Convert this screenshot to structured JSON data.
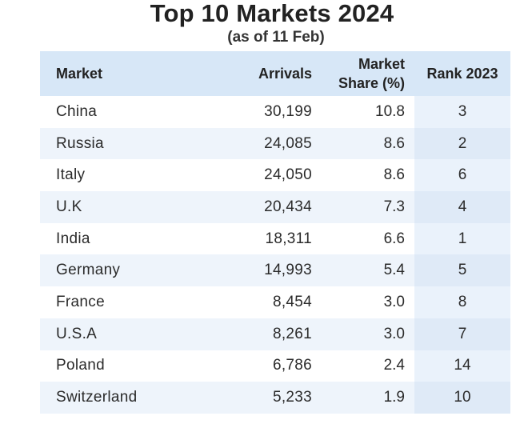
{
  "title": "Top 10 Markets 2024",
  "subtitle": "(as of 11 Feb)",
  "table": {
    "headers": {
      "market": "Market",
      "arrivals": "Arrivals",
      "share_line1": "Market",
      "share_line2": "Share (%)",
      "rank": "Rank 2023"
    },
    "rows": [
      {
        "market": "China",
        "arrivals": "30,199",
        "share": "10.8",
        "rank": "3"
      },
      {
        "market": "Russia",
        "arrivals": "24,085",
        "share": "8.6",
        "rank": "2"
      },
      {
        "market": "Italy",
        "arrivals": "24,050",
        "share": "8.6",
        "rank": "6"
      },
      {
        "market": "U.K",
        "arrivals": "20,434",
        "share": "7.3",
        "rank": "4"
      },
      {
        "market": "India",
        "arrivals": "18,311",
        "share": "6.6",
        "rank": "1"
      },
      {
        "market": "Germany",
        "arrivals": "14,993",
        "share": "5.4",
        "rank": "5"
      },
      {
        "market": "France",
        "arrivals": "8,454",
        "share": "3.0",
        "rank": "8"
      },
      {
        "market": "U.S.A",
        "arrivals": "8,261",
        "share": "3.0",
        "rank": "7"
      },
      {
        "market": "Poland",
        "arrivals": "6,786",
        "share": "2.4",
        "rank": "14"
      },
      {
        "market": "Switzerland",
        "arrivals": "5,233",
        "share": "1.9",
        "rank": "10"
      }
    ]
  },
  "colors": {
    "header_bg": "#d7e7f7",
    "stripe_bg": "#eef4fb",
    "text": "#222222"
  }
}
